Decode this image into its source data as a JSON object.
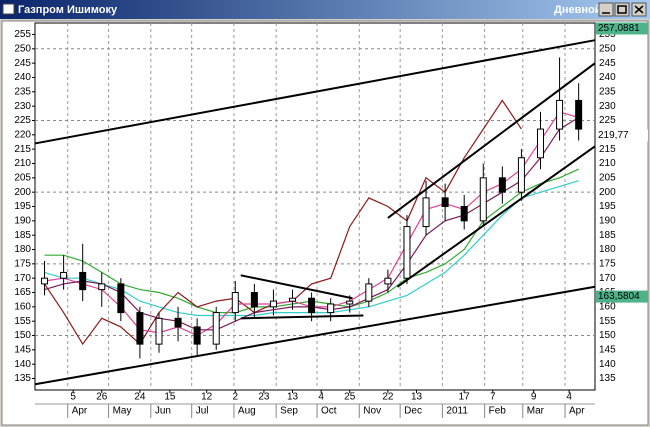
{
  "window": {
    "title": "Газпром Ишимоку",
    "timeframe": "Дневной"
  },
  "chart_data": {
    "type": "candlestick",
    "x": [
      14,
      28,
      42,
      56,
      70,
      84,
      98,
      112,
      126,
      140,
      154,
      168,
      182,
      196,
      210,
      224,
      238,
      252,
      266,
      280,
      294,
      308,
      322,
      336,
      350,
      364,
      378,
      392,
      406
    ],
    "open": [
      168,
      170,
      172,
      166,
      168,
      158,
      147,
      156,
      153,
      147,
      158,
      165,
      160,
      162,
      163,
      158,
      161,
      162,
      168,
      170,
      188,
      198,
      195,
      190,
      205,
      200,
      212,
      222,
      232
    ],
    "high": [
      176,
      178,
      182,
      172,
      170,
      160,
      158,
      160,
      156,
      160,
      169,
      168,
      166,
      166,
      165,
      163,
      164,
      170,
      173,
      192,
      204,
      203,
      199,
      210,
      209,
      215,
      228,
      247,
      238
    ],
    "low": [
      164,
      166,
      162,
      160,
      155,
      142,
      144,
      148,
      143,
      145,
      155,
      156,
      157,
      159,
      155,
      155,
      158,
      160,
      165,
      168,
      185,
      190,
      187,
      188,
      196,
      197,
      208,
      218,
      218
    ],
    "close": [
      170,
      172,
      166,
      168,
      158,
      147,
      156,
      153,
      147,
      158,
      165,
      160,
      162,
      163,
      158,
      161,
      162,
      168,
      170,
      188,
      198,
      195,
      190,
      205,
      200,
      212,
      222,
      232,
      222
    ],
    "series": [
      {
        "color": "#33aa33",
        "values": [
          178,
          178,
          176,
          172,
          168,
          166,
          165,
          163,
          160,
          158,
          158,
          160,
          160,
          161,
          162,
          161,
          160,
          162,
          165,
          170,
          172,
          175,
          180,
          190,
          195,
          200,
          203,
          205,
          208
        ]
      },
      {
        "color": "#33cccc",
        "values": [
          172,
          170,
          170,
          168,
          166,
          162,
          160,
          158,
          157,
          157,
          157,
          157,
          158,
          158,
          158,
          158,
          159,
          160,
          162,
          164,
          168,
          172,
          178,
          185,
          192,
          198,
          200,
          202,
          204
        ]
      },
      {
        "color": "#8b1a1a",
        "values": [
          168,
          158,
          147,
          156,
          153,
          147,
          158,
          165,
          160,
          162,
          163,
          158,
          161,
          162,
          168,
          170,
          188,
          198,
          195,
          190,
          205,
          200,
          212,
          222,
          232,
          222,
          null,
          null,
          null
        ]
      },
      {
        "color": "#e0409a",
        "values": [
          169,
          170,
          168,
          166,
          160,
          152,
          151,
          153,
          150,
          154,
          161,
          161,
          161,
          162,
          160,
          160,
          162,
          166,
          170,
          182,
          194,
          196,
          194,
          200,
          203,
          208,
          218,
          228,
          226
        ]
      },
      {
        "color": "#7a1a5a",
        "values": [
          166,
          168,
          169,
          168,
          165,
          158,
          156,
          155,
          152,
          152,
          155,
          158,
          159,
          160,
          160,
          159,
          160,
          163,
          166,
          175,
          185,
          190,
          192,
          196,
          200,
          204,
          212,
          222,
          226
        ]
      }
    ],
    "trendlines": [
      [
        7,
        217,
        418,
        253
      ],
      [
        7,
        133,
        418,
        167
      ],
      [
        266,
        191,
        418,
        245
      ],
      [
        273,
        167,
        418,
        216
      ],
      [
        158,
        171,
        240,
        163
      ],
      [
        158,
        156,
        248,
        157
      ]
    ],
    "xlim": [
      7,
      418
    ],
    "ylim": [
      131,
      259
    ],
    "yticks": [
      135,
      140,
      145,
      150,
      155,
      160,
      165,
      170,
      175,
      180,
      185,
      190,
      195,
      200,
      205,
      210,
      215,
      220,
      225,
      230,
      235,
      240,
      245,
      250,
      255
    ],
    "xticks": [
      {
        "value": 35,
        "label": "5"
      },
      {
        "value": 56,
        "label": "26"
      },
      {
        "value": 84,
        "label": "24"
      },
      {
        "value": 106,
        "label": "15"
      },
      {
        "value": 133,
        "label": "12"
      },
      {
        "value": 154,
        "label": "2"
      },
      {
        "value": 175,
        "label": "23"
      },
      {
        "value": 196,
        "label": "13"
      },
      {
        "value": 217,
        "label": "4"
      },
      {
        "value": 238,
        "label": "25"
      },
      {
        "value": 266,
        "label": "22"
      },
      {
        "value": 287,
        "label": "13"
      },
      {
        "value": 322,
        "label": "17"
      },
      {
        "value": 343,
        "label": "7"
      },
      {
        "value": 373,
        "label": "9"
      },
      {
        "value": 399,
        "label": "4"
      }
    ],
    "months": [
      {
        "value": 31,
        "label": "Apr"
      },
      {
        "value": 61,
        "label": "May"
      },
      {
        "value": 92,
        "label": "Jun"
      },
      {
        "value": 122,
        "label": "Jul"
      },
      {
        "value": 153,
        "label": "Aug"
      },
      {
        "value": 184,
        "label": "Sep"
      },
      {
        "value": 214,
        "label": "Oct"
      },
      {
        "value": 245,
        "label": "Nov"
      },
      {
        "value": 275,
        "label": "Dec"
      },
      {
        "value": 306,
        "label": "2011"
      },
      {
        "value": 337,
        "label": "Feb"
      },
      {
        "value": 365,
        "label": "Mar"
      },
      {
        "value": 396,
        "label": "Apr"
      }
    ],
    "price_labels": [
      {
        "value": 257.0881,
        "label": "257,0881",
        "color": "#4fb38a"
      },
      {
        "value": 219.77,
        "label": "219,77",
        "color": "#ffffff"
      },
      {
        "value": 163.5804,
        "label": "163,5804",
        "color": "#4fb38a"
      }
    ],
    "grid": true
  }
}
